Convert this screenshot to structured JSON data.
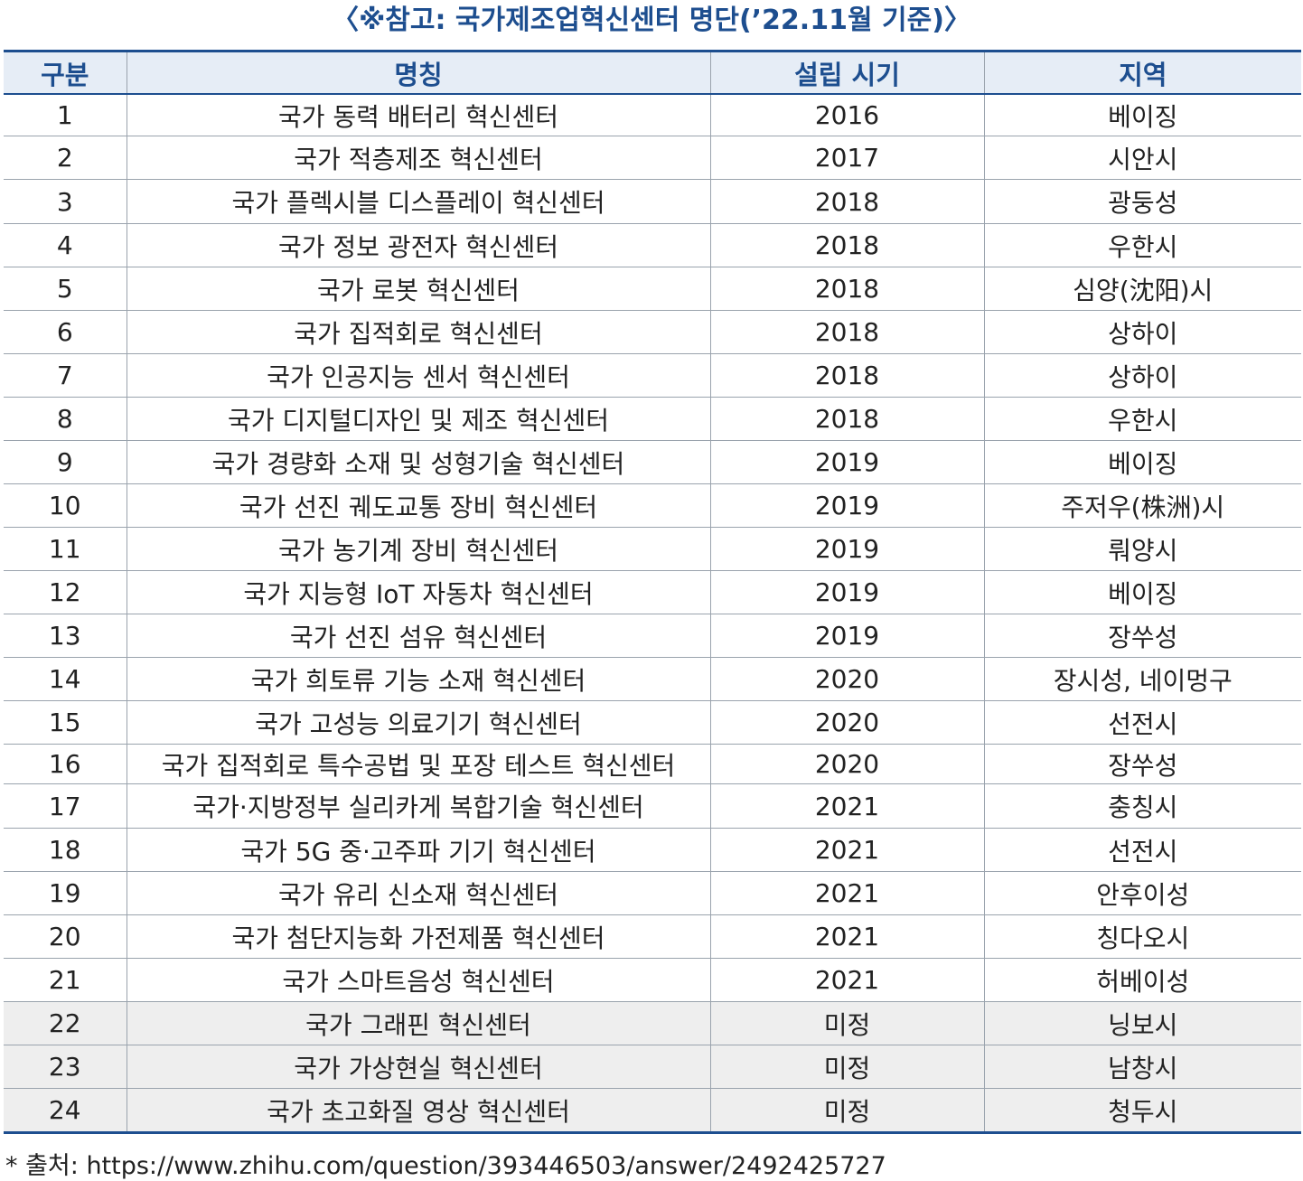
{
  "title": "〈※참고: 국가제조업혁신센터 명단(’22.11월 기준)〉",
  "table": {
    "headers": [
      "구분",
      "명칭",
      "설립 시기",
      "지역"
    ],
    "rows": [
      {
        "no": "1",
        "name": "국가 동력 배터리 혁신센터",
        "year": "2016",
        "region": "베이징"
      },
      {
        "no": "2",
        "name": "국가 적층제조 혁신센터",
        "year": "2017",
        "region": "시안시"
      },
      {
        "no": "3",
        "name": "국가 플렉시블 디스플레이 혁신센터",
        "year": "2018",
        "region": "광둥성"
      },
      {
        "no": "4",
        "name": "국가 정보 광전자 혁신센터",
        "year": "2018",
        "region": "우한시"
      },
      {
        "no": "5",
        "name": "국가 로봇 혁신센터",
        "year": "2018",
        "region": "심양(沈阳)시"
      },
      {
        "no": "6",
        "name": "국가 집적회로 혁신센터",
        "year": "2018",
        "region": "상하이"
      },
      {
        "no": "7",
        "name": "국가 인공지능 센서 혁신센터",
        "year": "2018",
        "region": "상하이"
      },
      {
        "no": "8",
        "name": "국가 디지털디자인 및 제조 혁신센터",
        "year": "2018",
        "region": "우한시"
      },
      {
        "no": "9",
        "name": "국가 경량화 소재 및 성형기술 혁신센터",
        "year": "2019",
        "region": "베이징"
      },
      {
        "no": "10",
        "name": "국가 선진 궤도교통 장비 혁신센터",
        "year": "2019",
        "region": "주저우(株洲)시"
      },
      {
        "no": "11",
        "name": "국가 농기계 장비 혁신센터",
        "year": "2019",
        "region": "뤄양시"
      },
      {
        "no": "12",
        "name": "국가 지능형 IoT 자동차 혁신센터",
        "year": "2019",
        "region": "베이징"
      },
      {
        "no": "13",
        "name": "국가 선진 섬유 혁신센터",
        "year": "2019",
        "region": "장쑤성"
      },
      {
        "no": "14",
        "name": "국가 희토류 기능 소재 혁신센터",
        "year": "2020",
        "region": "장시성, 네이멍구"
      },
      {
        "no": "15",
        "name": "국가 고성능 의료기기 혁신센터",
        "year": "2020",
        "region": "선전시"
      },
      {
        "no": "16",
        "name": "국가 집적회로 특수공법 및 포장 테스트 혁신센터",
        "year": "2020",
        "region": "장쑤성"
      },
      {
        "no": "17",
        "name": "국가·지방정부 실리카게 복합기술 혁신센터",
        "year": "2021",
        "region": "충칭시"
      },
      {
        "no": "18",
        "name": "국가 5G 중·고주파 기기 혁신센터",
        "year": "2021",
        "region": "선전시"
      },
      {
        "no": "19",
        "name": "국가 유리 신소재 혁신센터",
        "year": "2021",
        "region": "안후이성"
      },
      {
        "no": "20",
        "name": "국가 첨단지능화 가전제품 혁신센터",
        "year": "2021",
        "region": "칭다오시"
      },
      {
        "no": "21",
        "name": "국가 스마트음성 혁신센터",
        "year": "2021",
        "region": "허베이성"
      },
      {
        "no": "22",
        "name": "국가 그래핀 혁신센터",
        "year": "미정",
        "region": "닝보시"
      },
      {
        "no": "23",
        "name": "국가 가상현실 혁신센터",
        "year": "미정",
        "region": "남창시"
      },
      {
        "no": "24",
        "name": "국가 초고화질 영상 혁신센터",
        "year": "미정",
        "region": "청두시"
      }
    ]
  },
  "footnote": "* 출처: https://www.zhihu.com/question/393446503/answer/2492425727",
  "colors": {
    "accent": "#1d4e8f",
    "header_bg": "#e6edf6",
    "pending_row_bg": "#eeeeee"
  }
}
